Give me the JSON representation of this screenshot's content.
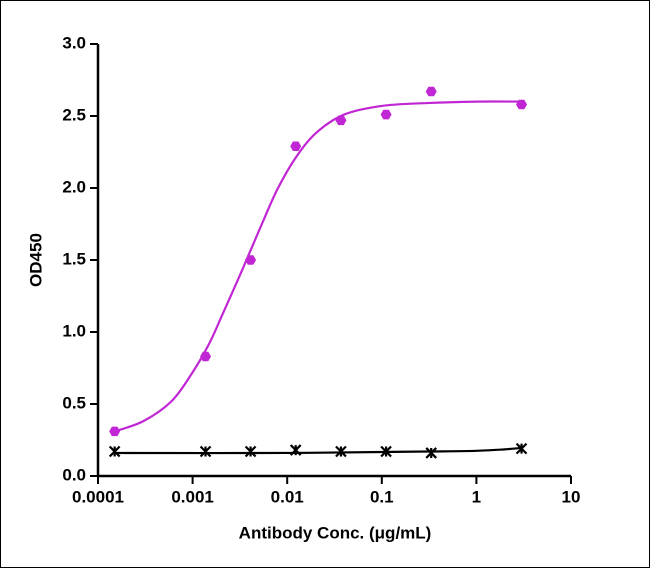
{
  "chart_data": {
    "type": "scatter",
    "x_label": "Antibody Conc. (μg/mL)",
    "y_label": "OD450",
    "xscale": "log",
    "xlim": [
      0.0001,
      10
    ],
    "xticks": [
      0.0001,
      0.001,
      0.01,
      0.1,
      1,
      10
    ],
    "ylim": [
      0,
      3
    ],
    "yticks": [
      {
        "value": 0,
        "label": "0.0"
      },
      0.5,
      {
        "value": 1,
        "label": "1.0"
      },
      1.5,
      {
        "value": 2,
        "label": "2.0"
      },
      2.5,
      {
        "value": 3,
        "label": "3.0"
      }
    ],
    "grid": false,
    "series": [
      {
        "color": "#c026d3",
        "marker": "hexagon",
        "x": [
          0.00015,
          0.00137,
          0.0041,
          0.0123,
          0.037,
          0.111,
          0.333,
          3
        ],
        "values": [
          0.31,
          0.83,
          1.5,
          2.29,
          2.47,
          2.51,
          2.67,
          2.58
        ],
        "fit_x": [
          0.00015,
          0.0003,
          0.0006,
          0.001,
          0.0015,
          0.002,
          0.003,
          0.004,
          0.006,
          0.008,
          0.012,
          0.02,
          0.04,
          0.1,
          0.3,
          1,
          3
        ],
        "fit_values": [
          0.31,
          0.38,
          0.52,
          0.72,
          0.92,
          1.1,
          1.36,
          1.55,
          1.82,
          2.0,
          2.2,
          2.38,
          2.51,
          2.57,
          2.59,
          2.6,
          2.6
        ]
      },
      {
        "color": "#000000",
        "marker": "asterisk",
        "x": [
          0.00015,
          0.00137,
          0.0041,
          0.0123,
          0.037,
          0.111,
          0.333,
          3
        ],
        "values": [
          0.17,
          0.17,
          0.17,
          0.18,
          0.17,
          0.17,
          0.16,
          0.19
        ],
        "fit_x": [
          0.00015,
          0.01,
          0.3,
          1,
          2,
          3
        ],
        "fit_values": [
          0.16,
          0.16,
          0.17,
          0.175,
          0.185,
          0.195
        ]
      }
    ]
  }
}
